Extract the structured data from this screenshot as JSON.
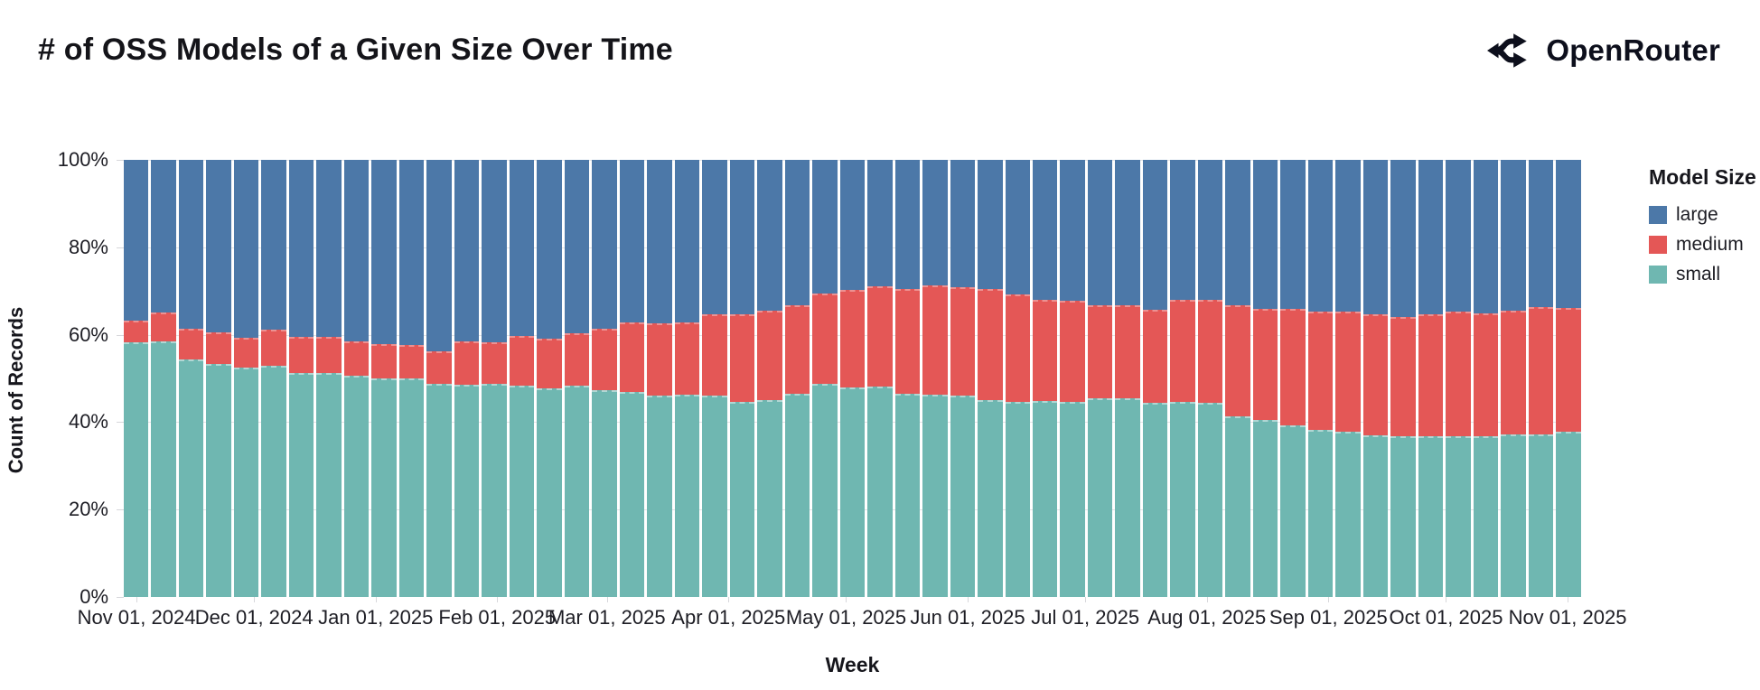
{
  "header": {
    "title": "# of OSS Models of a Given Size Over Time",
    "brand": "OpenRouter"
  },
  "legend": {
    "title": "Model Size",
    "items": [
      {
        "label": "large",
        "color": "#4c78a8"
      },
      {
        "label": "medium",
        "color": "#e45756"
      },
      {
        "label": "small",
        "color": "#6fb7b1"
      }
    ]
  },
  "y_axis": {
    "title": "Count of Records",
    "ticks": [
      {
        "label": "100%",
        "value": 100
      },
      {
        "label": "80%",
        "value": 80
      },
      {
        "label": "60%",
        "value": 60
      },
      {
        "label": "40%",
        "value": 40
      },
      {
        "label": "20%",
        "value": 20
      },
      {
        "label": "0%",
        "value": 0
      }
    ]
  },
  "x_axis": {
    "title": "Week",
    "ticks": [
      {
        "label": "Nov 01, 2024",
        "day": 0
      },
      {
        "label": "Dec 01, 2024",
        "day": 30
      },
      {
        "label": "Jan 01, 2025",
        "day": 61
      },
      {
        "label": "Feb 01, 2025",
        "day": 92
      },
      {
        "label": "Mar 01, 2025",
        "day": 120
      },
      {
        "label": "Apr 01, 2025",
        "day": 151
      },
      {
        "label": "May 01, 2025",
        "day": 181
      },
      {
        "label": "Jun 01, 2025",
        "day": 212
      },
      {
        "label": "Jul 01, 2025",
        "day": 242
      },
      {
        "label": "Aug 01, 2025",
        "day": 273
      },
      {
        "label": "Sep 01, 2025",
        "day": 304
      },
      {
        "label": "Oct 01, 2025",
        "day": 334
      },
      {
        "label": "Nov 01, 2025",
        "day": 365
      }
    ]
  },
  "chart_data": {
    "type": "bar",
    "variant": "stacked-100-percent",
    "title": "# of OSS Models of a Given Size Over Time",
    "xlabel": "Week",
    "ylabel": "Count of Records",
    "ylim": [
      0,
      100
    ],
    "grid": true,
    "legend_position": "right",
    "weeks": 53,
    "x_span": [
      "Nov 01, 2024",
      "Nov 01, 2025"
    ],
    "x_tick_labels": [
      "Nov 01, 2024",
      "Dec 01, 2024",
      "Jan 01, 2025",
      "Feb 01, 2025",
      "Mar 01, 2025",
      "Apr 01, 2025",
      "May 01, 2025",
      "Jun 01, 2025",
      "Jul 01, 2025",
      "Aug 01, 2025",
      "Sep 01, 2025",
      "Oct 01, 2025",
      "Nov 01, 2025"
    ],
    "y_tick_labels": [
      "0%",
      "20%",
      "40%",
      "60%",
      "80%",
      "100%"
    ],
    "stack_order_bottom_to_top": [
      "small",
      "medium",
      "large"
    ],
    "series": [
      {
        "name": "small",
        "color": "#6fb7b1",
        "values": [
          58.3,
          58.6,
          54.3,
          53.4,
          52.4,
          53.0,
          51.3,
          51.3,
          50.6,
          50.1,
          50.0,
          48.8,
          48.6,
          48.8,
          48.4,
          47.7,
          48.3,
          47.2,
          46.8,
          46.1,
          46.2,
          46.0,
          44.6,
          45.1,
          46.5,
          48.8,
          47.9,
          48.2,
          46.5,
          46.3,
          46.0,
          45.1,
          44.5,
          44.8,
          44.5,
          45.5,
          45.5,
          44.3,
          44.6,
          44.3,
          41.3,
          40.5,
          39.1,
          38.1,
          37.7,
          36.8,
          36.6,
          36.7,
          36.7,
          36.7,
          37.0,
          37.0,
          37.7
        ]
      },
      {
        "name": "medium",
        "color": "#e45756",
        "values": [
          4.7,
          6.2,
          6.7,
          6.9,
          6.5,
          7.8,
          7.8,
          7.8,
          7.6,
          7.3,
          7.2,
          7.0,
          9.5,
          9.1,
          10.9,
          11.0,
          11.8,
          13.8,
          15.7,
          16.2,
          16.3,
          18.4,
          19.8,
          20.2,
          20.0,
          20.3,
          22.2,
          22.6,
          23.8,
          24.8,
          24.7,
          25.2,
          24.4,
          23.0,
          22.9,
          21.0,
          21.0,
          21.2,
          23.1,
          23.5,
          25.2,
          25.1,
          26.5,
          26.8,
          27.4,
          27.5,
          27.1,
          27.6,
          28.2,
          27.8,
          28.3,
          29.0,
          28.1
        ]
      },
      {
        "name": "large",
        "color": "#4c78a8",
        "values": [
          37.0,
          35.2,
          39.0,
          39.7,
          41.1,
          39.2,
          40.9,
          40.9,
          41.8,
          42.6,
          42.8,
          44.2,
          41.9,
          42.1,
          40.7,
          41.3,
          39.9,
          39.0,
          37.5,
          37.7,
          37.5,
          35.6,
          35.6,
          34.7,
          33.5,
          30.9,
          29.9,
          29.2,
          29.7,
          28.9,
          29.3,
          29.7,
          31.1,
          32.2,
          32.6,
          33.5,
          33.5,
          34.5,
          32.3,
          32.2,
          33.5,
          34.4,
          34.4,
          35.1,
          34.9,
          35.7,
          36.3,
          35.7,
          35.1,
          35.5,
          34.7,
          34.0,
          34.3
        ]
      }
    ]
  }
}
